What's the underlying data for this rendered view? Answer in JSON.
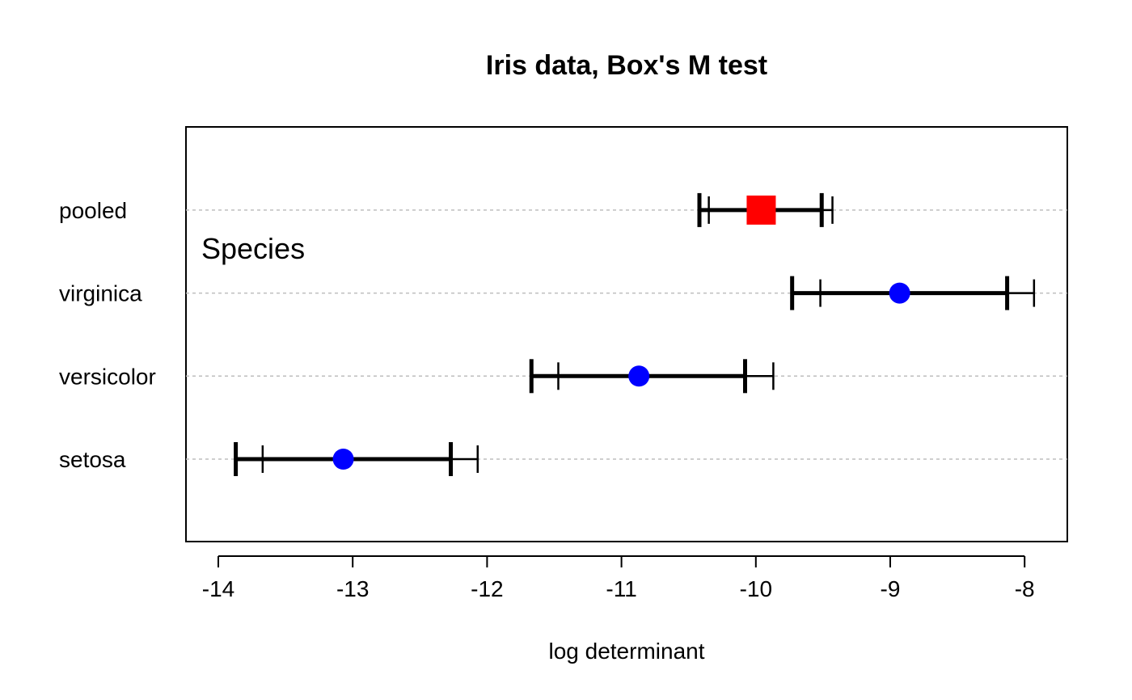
{
  "chart_data": {
    "type": "scatter",
    "title": "Iris data, Box's M test",
    "xlabel": "log determinant",
    "ylabel": "",
    "xlim": [
      -14.25,
      -7.9
    ],
    "xticks": [
      -14,
      -13,
      -12,
      -11,
      -10,
      -9,
      -8
    ],
    "xtick_labels": [
      "-14",
      "-13",
      "-12",
      "-11",
      "-10",
      "-9",
      "-8"
    ],
    "annotation": "Species",
    "grid": "horizontal dotted lines at each category",
    "categories": [
      "setosa",
      "versicolor",
      "virginica",
      "pooled"
    ],
    "points": [
      {
        "group": "setosa",
        "estimate": -13.07,
        "ci_inner": [
          -13.87,
          -12.27
        ],
        "ci_outer": [
          -13.67,
          -12.07
        ],
        "shape": "circle",
        "color": "#0000ff"
      },
      {
        "group": "versicolor",
        "estimate": -10.87,
        "ci_inner": [
          -11.67,
          -10.08
        ],
        "ci_outer": [
          -11.47,
          -9.87
        ],
        "shape": "circle",
        "color": "#0000ff"
      },
      {
        "group": "virginica",
        "estimate": -8.93,
        "ci_inner": [
          -9.73,
          -8.13
        ],
        "ci_outer": [
          -9.52,
          -7.93
        ],
        "shape": "circle",
        "color": "#0000ff"
      },
      {
        "group": "pooled",
        "estimate": -9.96,
        "ci_inner": [
          -10.42,
          -9.51
        ],
        "ci_outer": [
          -10.35,
          -9.43
        ],
        "shape": "square",
        "color": "#ff0000"
      }
    ],
    "colors": {
      "groups": "#0000ff",
      "pooled": "#ff0000",
      "intervals": "#000000",
      "grid": "#bebebe"
    }
  }
}
